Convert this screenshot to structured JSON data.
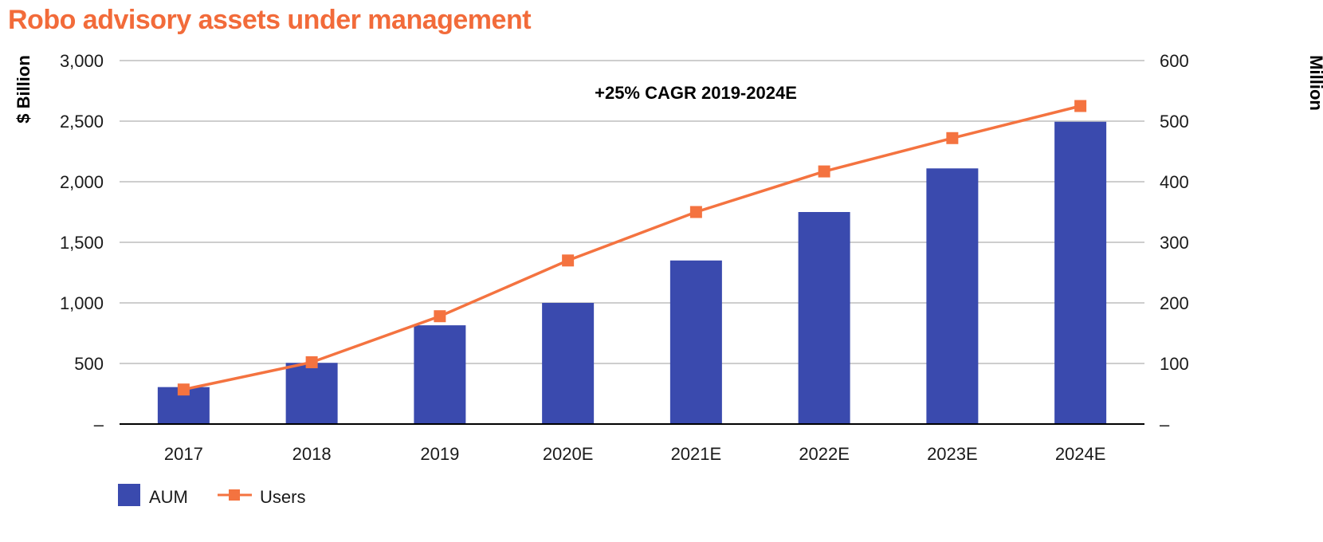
{
  "title": "Robo advisory assets under management",
  "chart_data": {
    "type": "bar",
    "categories": [
      "2017",
      "2018",
      "2019",
      "2020E",
      "2021E",
      "2022E",
      "2023E",
      "2024E"
    ],
    "series": [
      {
        "name": "AUM",
        "kind": "bar",
        "axis": "left",
        "color": "#3A4AAE",
        "values": [
          305,
          505,
          815,
          1000,
          1350,
          1750,
          2110,
          2495
        ]
      },
      {
        "name": "Users",
        "kind": "line",
        "axis": "right",
        "color": "#F47340",
        "values": [
          57,
          102,
          178,
          270,
          350,
          417,
          472,
          525
        ]
      }
    ],
    "ylabel": "$ Billion",
    "y2label": "Million",
    "ylim": [
      0,
      3000
    ],
    "y2lim": [
      0,
      600
    ],
    "yticks": [
      "–",
      "500",
      "1,000",
      "1,500",
      "2,000",
      "2,500",
      "3,000"
    ],
    "y2ticks": [
      "–",
      "100",
      "200",
      "300",
      "400",
      "500",
      "600"
    ],
    "annotation": "+25% CAGR 2019-2024E",
    "grid": true,
    "legend": "bottom-left"
  }
}
